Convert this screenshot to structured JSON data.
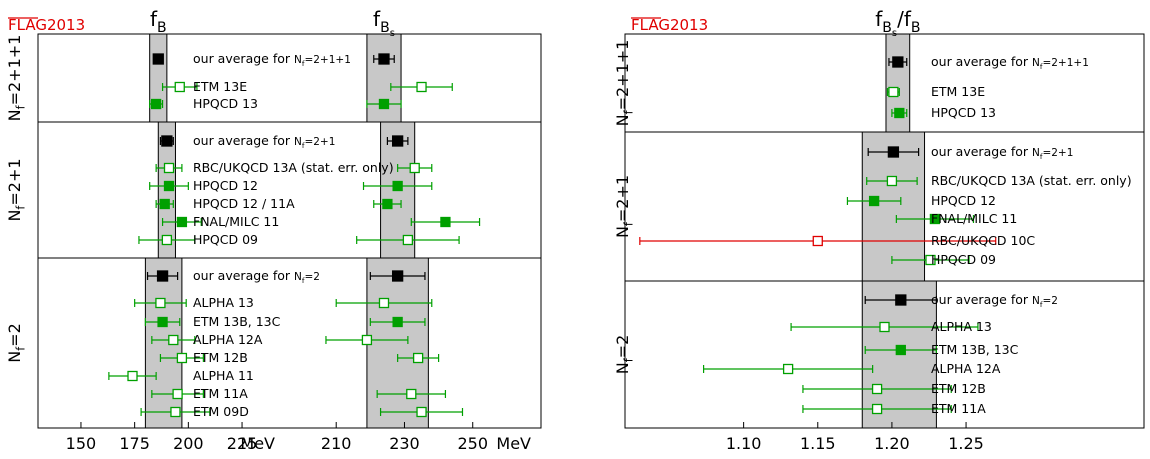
{
  "colors": {
    "average": "#000000",
    "included": "#00a000",
    "open": "#00a000",
    "excluded": "#e00000",
    "band": "#c8c8c8"
  },
  "chart_data": [
    {
      "type": "scatter",
      "flag_label": "FLAG2013",
      "x_unit": "MeV",
      "panels": [
        {
          "title": "f",
          "subscript": "B",
          "sub_subscript": "",
          "xlim": [
            130,
            245
          ],
          "ticks": [
            150,
            175,
            200,
            225
          ],
          "unit": "MeV"
        },
        {
          "title": "f",
          "subscript": "B",
          "sub_subscript": "s",
          "xlim": [
            195,
            270
          ],
          "ticks": [
            210,
            230,
            250
          ],
          "unit": "MeV"
        }
      ],
      "groups": [
        {
          "label": "Nf=2+1+1",
          "band": {
            "fB": [
              182,
              190
            ],
            "fBs": [
              219,
              229
            ]
          },
          "rows": [
            {
              "name": "our average for Nf=2+1+1",
              "style": "average",
              "fB": [
                186,
                2
              ],
              "fBs": [
                224,
                3
              ]
            },
            {
              "name": "ETM 13E",
              "style": "open",
              "fB": [
                196,
                8
              ],
              "fBs": [
                235,
                9
              ]
            },
            {
              "name": "HPQCD 13",
              "style": "filled",
              "fB": [
                185,
                3
              ],
              "fBs": [
                224,
                5
              ]
            }
          ]
        },
        {
          "label": "Nf=2+1",
          "band": {
            "fB": [
              186,
              194
            ],
            "fBs": [
              223,
              233
            ]
          },
          "rows": [
            {
              "name": "our average for Nf=2+1",
              "style": "average",
              "fB": [
                190,
                3
              ],
              "fBs": [
                228,
                3
              ]
            },
            {
              "name": "RBC/UKQCD 13A (stat. err. only)",
              "style": "open",
              "fB": [
                191,
                6
              ],
              "fBs": [
                233,
                5
              ]
            },
            {
              "name": "HPQCD 12",
              "style": "filled",
              "fB": [
                191,
                9
              ],
              "fBs": [
                228,
                10
              ]
            },
            {
              "name": "HPQCD 12 / 11A",
              "style": "filled",
              "fB": [
                189,
                4
              ],
              "fBs": [
                225,
                4
              ]
            },
            {
              "name": "FNAL/MILC 11",
              "style": "filled",
              "fB": [
                197,
                9
              ],
              "fBs": [
                242,
                10
              ]
            },
            {
              "name": "HPQCD 09",
              "style": "open",
              "fB": [
                190,
                13
              ],
              "fBs": [
                231,
                15
              ]
            }
          ]
        },
        {
          "label": "Nf=2",
          "band": {
            "fB": [
              180,
              197
            ],
            "fBs": [
              219,
              237
            ]
          },
          "rows": [
            {
              "name": "our average for Nf=2",
              "style": "average",
              "fB": [
                188,
                7
              ],
              "fBs": [
                228,
                8
              ]
            },
            {
              "name": "ALPHA 13",
              "style": "open",
              "fB": [
                187,
                12
              ],
              "fBs": [
                224,
                14
              ]
            },
            {
              "name": "ETM 13B, 13C",
              "style": "filled",
              "fB": [
                188,
                8
              ],
              "fBs": [
                228,
                8
              ]
            },
            {
              "name": "ALPHA 12A",
              "style": "open",
              "fB": [
                193,
                10
              ],
              "fBs": [
                219,
                12
              ]
            },
            {
              "name": "ETM 12B",
              "style": "open",
              "fB": [
                197,
                10
              ],
              "fBs": [
                234,
                6
              ]
            },
            {
              "name": "ALPHA 11",
              "style": "open",
              "fB": [
                174,
                11
              ],
              "fBs": null
            },
            {
              "name": "ETM 11A",
              "style": "open",
              "fB": [
                195,
                12
              ],
              "fBs": [
                232,
                10
              ]
            },
            {
              "name": "ETM 09D",
              "style": "open",
              "fB": [
                194,
                16
              ],
              "fBs": [
                235,
                12
              ]
            }
          ]
        }
      ]
    },
    {
      "type": "scatter",
      "flag_label": "FLAG2013",
      "title_main": "f",
      "title_num_sub": "B",
      "title_num_subsub": "s",
      "title_den": "/f",
      "title_den_sub": "B",
      "xlim": [
        1.02,
        1.37
      ],
      "ticks": [
        1.1,
        1.15,
        1.2,
        1.25
      ],
      "tick_labels": [
        "1.10",
        "1.15",
        "1.20",
        "1.25"
      ],
      "groups": [
        {
          "label": "Nf=2+1+1",
          "band": [
            1.196,
            1.212
          ],
          "rows": [
            {
              "name": "our average for Nf=2+1+1",
              "style": "average",
              "v": [
                1.204,
                0.006
              ]
            },
            {
              "name": "ETM 13E",
              "style": "open",
              "v": [
                1.201,
                0.004
              ]
            },
            {
              "name": "HPQCD 13",
              "style": "filled",
              "v": [
                1.205,
                0.005
              ]
            }
          ]
        },
        {
          "label": "Nf=2+1",
          "band": [
            1.18,
            1.222
          ],
          "rows": [
            {
              "name": "our average for Nf=2+1",
              "style": "average",
              "v": [
                1.201,
                0.017
              ]
            },
            {
              "name": "RBC/UKQCD 13A (stat. err. only)",
              "style": "open",
              "v": [
                1.2,
                0.017
              ]
            },
            {
              "name": "HPQCD 12",
              "style": "filled",
              "v": [
                1.188,
                0.018
              ]
            },
            {
              "name": "FNAL/MILC 11",
              "style": "filled",
              "v": [
                1.229,
                0.026
              ]
            },
            {
              "name": "RBC/UKQCD 10C",
              "style": "excluded",
              "v": [
                1.15,
                0.12
              ]
            },
            {
              "name": "HPQCD 09",
              "style": "open",
              "v": [
                1.226,
                0.026
              ]
            }
          ]
        },
        {
          "label": "Nf=2",
          "band": [
            1.18,
            1.23
          ],
          "rows": [
            {
              "name": "our average for Nf=2",
              "style": "average",
              "v": [
                1.206,
                0.024
              ]
            },
            {
              "name": "ALPHA 13",
              "style": "open",
              "v": [
                1.195,
                0.063
              ]
            },
            {
              "name": "ETM 13B, 13C",
              "style": "filled",
              "v": [
                1.206,
                0.024
              ]
            },
            {
              "name": "ALPHA 12A",
              "style": "open",
              "v": [
                1.13,
                0.057
              ]
            },
            {
              "name": "ETM 12B",
              "style": "open",
              "v": [
                1.19,
                0.05
              ]
            },
            {
              "name": "ETM 11A",
              "style": "open",
              "v": [
                1.19,
                0.05
              ]
            }
          ]
        }
      ]
    }
  ]
}
